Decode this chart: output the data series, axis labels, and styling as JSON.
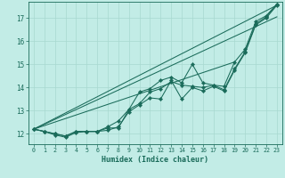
{
  "bg_color": "#c2ece6",
  "grid_color": "#a8d8d0",
  "line_color": "#1a6b5a",
  "xlabel": "Humidex (Indice chaleur)",
  "xlim": [
    -0.5,
    23.5
  ],
  "ylim": [
    11.55,
    17.7
  ],
  "xticks": [
    0,
    1,
    2,
    3,
    4,
    5,
    6,
    7,
    8,
    9,
    10,
    11,
    12,
    13,
    14,
    15,
    16,
    17,
    18,
    19,
    20,
    21,
    22,
    23
  ],
  "yticks": [
    12,
    13,
    14,
    15,
    16,
    17
  ],
  "curve_wavy1_x": [
    0,
    1,
    2,
    3,
    4,
    5,
    6,
    7,
    8,
    9,
    10,
    11,
    12,
    13,
    14,
    15,
    16,
    17,
    18,
    19,
    20,
    21,
    22,
    23
  ],
  "curve_wavy1_y": [
    12.2,
    12.1,
    11.95,
    11.85,
    12.05,
    12.1,
    12.1,
    12.15,
    12.3,
    12.95,
    13.25,
    13.55,
    13.5,
    14.3,
    13.5,
    14.0,
    13.85,
    14.05,
    13.85,
    14.75,
    15.5,
    16.7,
    17.0,
    17.55
  ],
  "curve_wavy2_x": [
    0,
    1,
    2,
    3,
    4,
    5,
    6,
    7,
    8,
    9,
    10,
    11,
    12,
    13,
    14,
    15,
    16,
    17,
    18,
    19,
    20,
    21,
    22,
    23
  ],
  "curve_wavy2_y": [
    12.2,
    12.1,
    12.0,
    11.9,
    12.1,
    12.1,
    12.1,
    12.25,
    12.25,
    13.05,
    13.3,
    13.8,
    13.95,
    14.25,
    14.1,
    14.05,
    14.0,
    14.1,
    13.9,
    14.8,
    15.55,
    16.75,
    17.05,
    17.6
  ],
  "curve_wavy3_x": [
    0,
    1,
    2,
    3,
    4,
    5,
    6,
    7,
    8,
    9,
    10,
    11,
    12,
    13,
    14,
    15,
    16,
    17,
    18,
    19,
    20,
    21,
    22,
    23
  ],
  "curve_wavy3_y": [
    12.2,
    12.1,
    12.0,
    11.9,
    12.1,
    12.1,
    12.1,
    12.3,
    12.55,
    13.05,
    13.8,
    13.95,
    14.3,
    14.45,
    14.2,
    15.0,
    14.2,
    14.1,
    14.05,
    15.1,
    15.65,
    16.85,
    17.1,
    17.6
  ],
  "line1_x": [
    0,
    23
  ],
  "line1_y": [
    12.2,
    17.55
  ],
  "line2_x": [
    0,
    19
  ],
  "line2_y": [
    12.2,
    15.1
  ],
  "line3_x": [
    0,
    23
  ],
  "line3_y": [
    12.2,
    17.05
  ]
}
